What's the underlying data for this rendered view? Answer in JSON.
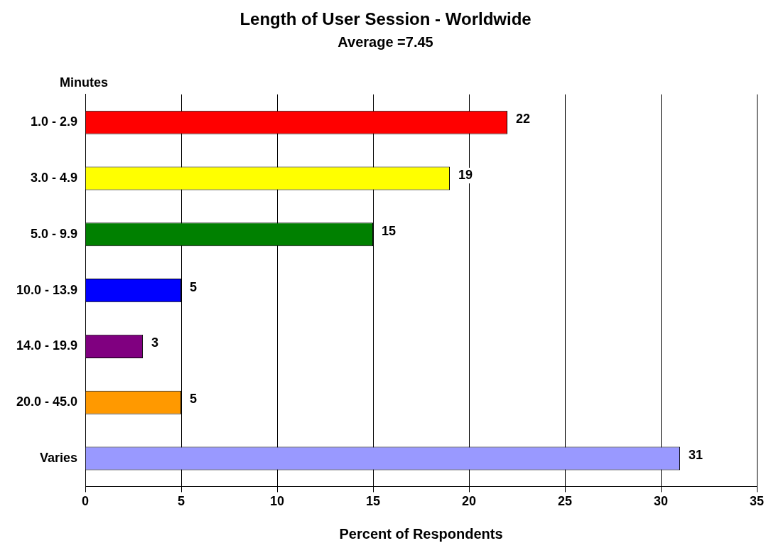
{
  "chart_data": {
    "type": "bar",
    "orientation": "horizontal",
    "title": "Length of User Session - Worldwide",
    "subtitle": "Average =7.45",
    "ylabel": "Minutes",
    "xlabel": "Percent of Respondents",
    "categories": [
      "1.0 - 2.9",
      "3.0 - 4.9",
      "5.0 - 9.9",
      "10.0 - 13.9",
      "14.0 - 19.9",
      "20.0 - 45.0",
      "Varies"
    ],
    "values": [
      22,
      19,
      15,
      5,
      3,
      5,
      31
    ],
    "colors": [
      "#ff0000",
      "#ffff00",
      "#008000",
      "#0000ff",
      "#800080",
      "#ff9900",
      "#9999ff"
    ],
    "xlim": [
      0,
      35
    ],
    "xticks": [
      0,
      5,
      10,
      15,
      20,
      25,
      30,
      35
    ],
    "grid": "x",
    "data_labels": true,
    "legend": false
  }
}
